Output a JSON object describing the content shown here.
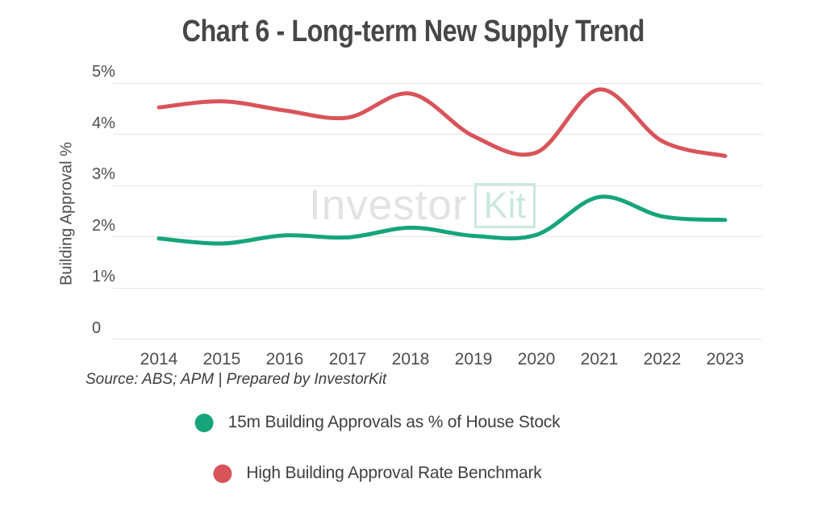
{
  "page": {
    "background": "#ffffff"
  },
  "chart_data": {
    "type": "line",
    "title": "Chart 6 - Long-term New Supply Trend",
    "y_axis_title": "Building Approval %",
    "x_categories": [
      "2014",
      "2015",
      "2016",
      "2017",
      "2018",
      "2019",
      "2020",
      "2021",
      "2022",
      "2023"
    ],
    "y_ticks": [
      {
        "label": "5%",
        "value": 5
      },
      {
        "label": "4%",
        "value": 4
      },
      {
        "label": "3%",
        "value": 3
      },
      {
        "label": "2%",
        "value": 2
      },
      {
        "label": "1%",
        "value": 1
      },
      {
        "label": "0",
        "value": 0
      }
    ],
    "ylim": [
      0,
      5.3
    ],
    "grid": "horizontal",
    "line_style": "smooth",
    "legend_position": "bottom",
    "series": [
      {
        "name": "15m Building Approvals as % of House Stock",
        "color": "#16a57b",
        "values": [
          1.97,
          1.87,
          2.03,
          1.99,
          2.18,
          2.02,
          2.04,
          2.78,
          2.4,
          2.33
        ]
      },
      {
        "name": "High Building Approval Rate Benchmark",
        "color": "#d9545a",
        "values": [
          4.53,
          4.65,
          4.47,
          4.33,
          4.8,
          3.97,
          3.65,
          4.88,
          3.87,
          3.58
        ]
      }
    ],
    "source_note": "Source: ABS; APM | Prepared by InvestorKit"
  },
  "watermark": {
    "investor": "Investor",
    "kit": "Kit"
  },
  "colors": {
    "title_text": "#474747",
    "axis_text": "#4d4d4d",
    "legend_text": "#3f3f3f",
    "source_text": "#3d3d3d",
    "gridline": "#e6e6e6",
    "watermark_gray": "#e3e3e3",
    "watermark_teal": "#cbe8df"
  }
}
